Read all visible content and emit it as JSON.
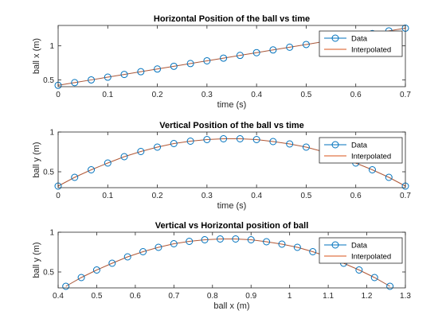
{
  "colors": {
    "data": "#0072BD",
    "interpolated": "#D95319",
    "axis": "#262626"
  },
  "chart_data": [
    {
      "type": "line",
      "title": "Horizontal Position of the ball vs time",
      "xlabel": "time (s)",
      "ylabel": "ball x (m)",
      "xlim": [
        0,
        0.7
      ],
      "ylim": [
        0.4,
        1.3
      ],
      "xticks": [
        0,
        0.1,
        0.2,
        0.3,
        0.4,
        0.5,
        0.6,
        0.7
      ],
      "xtick_labels": [
        "0",
        "0.1",
        "0.2",
        "0.3",
        "0.4",
        "0.5",
        "0.6",
        "0.7"
      ],
      "yticks": [
        0.5,
        1
      ],
      "ytick_labels": [
        "0.5",
        "1"
      ],
      "legend": {
        "position": "top-right",
        "entries": [
          "Data",
          "Interpolated"
        ]
      },
      "series": [
        {
          "name": "Data",
          "marker": "circle",
          "x": [
            0,
            0.0333,
            0.0667,
            0.1,
            0.1333,
            0.1667,
            0.2,
            0.2333,
            0.2667,
            0.3,
            0.3333,
            0.3667,
            0.4,
            0.4333,
            0.4667,
            0.5,
            0.5333,
            0.5667,
            0.6,
            0.6333,
            0.6667,
            0.7
          ],
          "y": [
            0.42,
            0.46,
            0.5,
            0.54,
            0.58,
            0.62,
            0.66,
            0.7,
            0.74,
            0.78,
            0.82,
            0.86,
            0.9,
            0.94,
            0.98,
            1.02,
            1.06,
            1.1,
            1.14,
            1.18,
            1.22,
            1.26
          ]
        },
        {
          "name": "Interpolated",
          "marker": "none",
          "x": [
            0,
            0.0333,
            0.0667,
            0.1,
            0.1333,
            0.1667,
            0.2,
            0.2333,
            0.2667,
            0.3,
            0.3333,
            0.3667,
            0.4,
            0.4333,
            0.4667,
            0.5,
            0.5333,
            0.5667,
            0.6,
            0.6333,
            0.6667,
            0.7
          ],
          "y": [
            0.42,
            0.46,
            0.5,
            0.54,
            0.58,
            0.62,
            0.66,
            0.7,
            0.74,
            0.78,
            0.82,
            0.86,
            0.9,
            0.94,
            0.98,
            1.02,
            1.06,
            1.1,
            1.14,
            1.18,
            1.22,
            1.26
          ]
        }
      ]
    },
    {
      "type": "line",
      "title": "Vertical Position of the ball vs time",
      "xlabel": "time (s)",
      "ylabel": "ball y (m)",
      "xlim": [
        0,
        0.7
      ],
      "ylim": [
        0.3,
        1.0
      ],
      "xticks": [
        0,
        0.1,
        0.2,
        0.3,
        0.4,
        0.5,
        0.6,
        0.7
      ],
      "xtick_labels": [
        "0",
        "0.1",
        "0.2",
        "0.3",
        "0.4",
        "0.5",
        "0.6",
        "0.7"
      ],
      "yticks": [
        0.5,
        1
      ],
      "ytick_labels": [
        "0.5",
        "1"
      ],
      "legend": {
        "position": "top-right",
        "entries": [
          "Data",
          "Interpolated"
        ]
      },
      "series": [
        {
          "name": "Data",
          "marker": "circle",
          "x": [
            0,
            0.0333,
            0.0667,
            0.1,
            0.1333,
            0.1667,
            0.2,
            0.2333,
            0.2667,
            0.3,
            0.3333,
            0.3667,
            0.4,
            0.4333,
            0.4667,
            0.5,
            0.5333,
            0.5667,
            0.6,
            0.6333,
            0.6667,
            0.7
          ],
          "y": [
            0.32,
            0.43,
            0.525,
            0.61,
            0.69,
            0.755,
            0.81,
            0.855,
            0.885,
            0.905,
            0.915,
            0.915,
            0.905,
            0.88,
            0.85,
            0.81,
            0.755,
            0.69,
            0.61,
            0.525,
            0.43,
            0.32
          ]
        },
        {
          "name": "Interpolated",
          "marker": "none",
          "x": [
            0,
            0.0333,
            0.0667,
            0.1,
            0.1333,
            0.1667,
            0.2,
            0.2333,
            0.2667,
            0.3,
            0.3333,
            0.3667,
            0.4,
            0.4333,
            0.4667,
            0.5,
            0.5333,
            0.5667,
            0.6,
            0.6333,
            0.6667,
            0.7
          ],
          "y": [
            0.32,
            0.43,
            0.525,
            0.61,
            0.69,
            0.755,
            0.81,
            0.855,
            0.885,
            0.905,
            0.915,
            0.915,
            0.905,
            0.88,
            0.85,
            0.81,
            0.755,
            0.69,
            0.61,
            0.525,
            0.43,
            0.32
          ]
        }
      ]
    },
    {
      "type": "line",
      "title": "Vertical vs Horizontal position of ball",
      "xlabel": "ball x (m)",
      "ylabel": "ball y (m)",
      "xlim": [
        0.4,
        1.3
      ],
      "ylim": [
        0.3,
        1.0
      ],
      "xticks": [
        0.4,
        0.5,
        0.6,
        0.7,
        0.8,
        0.9,
        1,
        1.1,
        1.2,
        1.3
      ],
      "xtick_labels": [
        "0.4",
        "0.5",
        "0.6",
        "0.7",
        "0.8",
        "0.9",
        "1",
        "1.1",
        "1.2",
        "1.3"
      ],
      "yticks": [
        0.5,
        1
      ],
      "ytick_labels": [
        "0.5",
        "1"
      ],
      "legend": {
        "position": "top-right",
        "entries": [
          "Data",
          "Interpolated"
        ]
      },
      "series": [
        {
          "name": "Data",
          "marker": "circle",
          "x": [
            0.42,
            0.46,
            0.5,
            0.54,
            0.58,
            0.62,
            0.66,
            0.7,
            0.74,
            0.78,
            0.82,
            0.86,
            0.9,
            0.94,
            0.98,
            1.02,
            1.06,
            1.1,
            1.14,
            1.18,
            1.22,
            1.26
          ],
          "y": [
            0.32,
            0.43,
            0.525,
            0.61,
            0.69,
            0.755,
            0.81,
            0.855,
            0.885,
            0.905,
            0.915,
            0.915,
            0.905,
            0.88,
            0.85,
            0.81,
            0.755,
            0.69,
            0.61,
            0.525,
            0.43,
            0.32
          ]
        },
        {
          "name": "Interpolated",
          "marker": "none",
          "x": [
            0.42,
            0.46,
            0.5,
            0.54,
            0.58,
            0.62,
            0.66,
            0.7,
            0.74,
            0.78,
            0.82,
            0.86,
            0.9,
            0.94,
            0.98,
            1.02,
            1.06,
            1.1,
            1.14,
            1.18,
            1.22,
            1.26
          ],
          "y": [
            0.32,
            0.43,
            0.525,
            0.61,
            0.69,
            0.755,
            0.81,
            0.855,
            0.885,
            0.905,
            0.915,
            0.915,
            0.905,
            0.88,
            0.85,
            0.81,
            0.755,
            0.69,
            0.61,
            0.525,
            0.43,
            0.32
          ]
        }
      ]
    }
  ]
}
